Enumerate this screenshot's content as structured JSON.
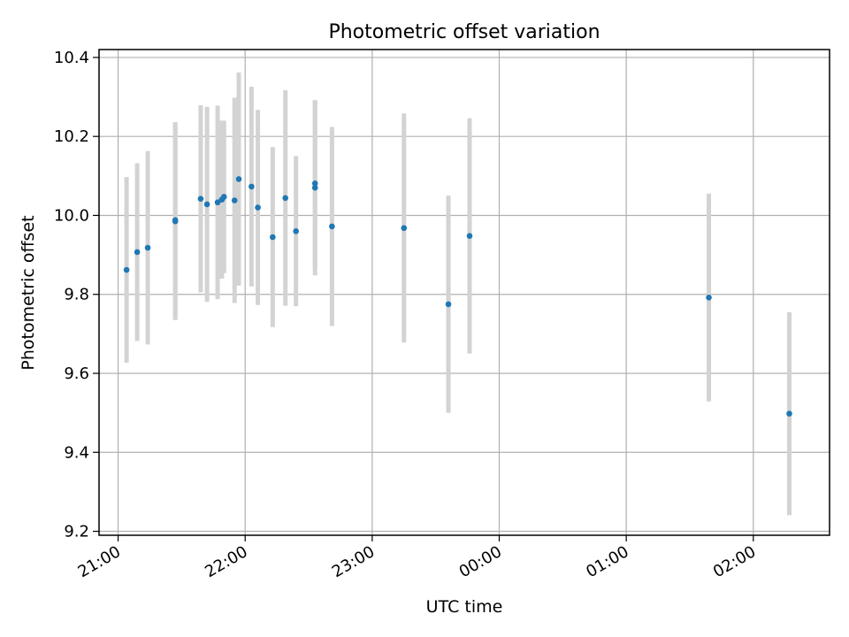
{
  "chart_data": {
    "type": "scatter",
    "title": "Photometric offset variation",
    "xlabel": "UTC time",
    "ylabel": "Photometric offset",
    "x_unit": "UTC time (HH:MM), crossing midnight",
    "xlim": [
      "20:51",
      "02:36"
    ],
    "ylim": [
      9.19,
      10.42
    ],
    "x_ticks": [
      "21:00",
      "22:00",
      "23:00",
      "00:00",
      "01:00",
      "02:00"
    ],
    "y_ticks": [
      "9.2",
      "9.4",
      "9.6",
      "9.8",
      "10.0",
      "10.2",
      "10.4"
    ],
    "grid": true,
    "point_color": "#1f77b4",
    "errorbar_color": "#d3d3d3",
    "series": [
      {
        "points": [
          {
            "x": "21:04",
            "y": 9.862,
            "err": 0.235
          },
          {
            "x": "21:09",
            "y": 9.907,
            "err": 0.225
          },
          {
            "x": "21:14",
            "y": 9.918,
            "err": 0.245
          },
          {
            "x": "21:27",
            "y": 9.988,
            "err": 0.248
          },
          {
            "x": "21:27",
            "y": 9.985,
            "err": 0.25
          },
          {
            "x": "21:39",
            "y": 10.042,
            "err": 0.237
          },
          {
            "x": "21:42",
            "y": 10.028,
            "err": 0.247
          },
          {
            "x": "21:47",
            "y": 10.033,
            "err": 0.245
          },
          {
            "x": "21:49",
            "y": 10.04,
            "err": 0.2
          },
          {
            "x": "21:50",
            "y": 10.047,
            "err": 0.193
          },
          {
            "x": "21:55",
            "y": 10.038,
            "err": 0.26
          },
          {
            "x": "21:57",
            "y": 10.092,
            "err": 0.27
          },
          {
            "x": "22:03",
            "y": 10.073,
            "err": 0.253
          },
          {
            "x": "22:06",
            "y": 10.02,
            "err": 0.247
          },
          {
            "x": "22:13",
            "y": 9.945,
            "err": 0.228
          },
          {
            "x": "22:19",
            "y": 10.044,
            "err": 0.273
          },
          {
            "x": "22:24",
            "y": 9.96,
            "err": 0.19
          },
          {
            "x": "22:33",
            "y": 10.081,
            "err": 0.21
          },
          {
            "x": "22:33",
            "y": 10.07,
            "err": 0.222
          },
          {
            "x": "22:41",
            "y": 9.972,
            "err": 0.252
          },
          {
            "x": "23:15",
            "y": 9.968,
            "err": 0.29
          },
          {
            "x": "23:36",
            "y": 9.775,
            "err": 0.275
          },
          {
            "x": "23:46",
            "y": 9.948,
            "err": 0.298
          },
          {
            "x": "01:39",
            "y": 9.792,
            "err": 0.263
          },
          {
            "x": "02:17",
            "y": 9.498,
            "err": 0.257
          }
        ]
      }
    ]
  }
}
